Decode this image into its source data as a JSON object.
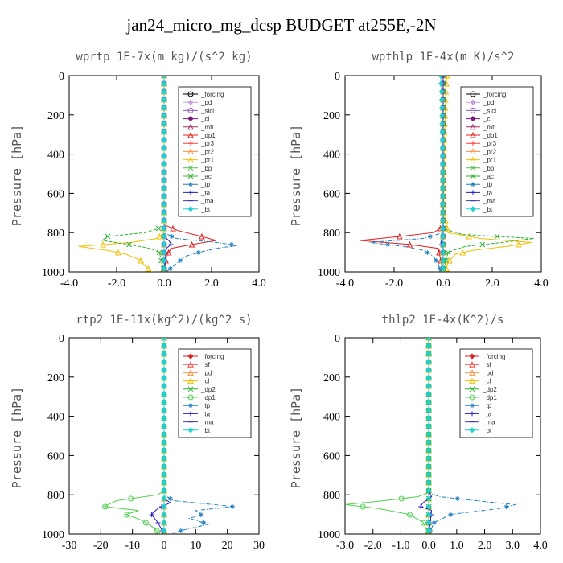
{
  "figure_title": "jan24_micro_mg_dcsp  BUDGET at255E,-2N",
  "chart_data": [
    {
      "type": "line",
      "title": "wprtp  1E-7x(m kg)/(s^2 kg)",
      "ylabel": "Pressure [hPa]",
      "xlim": [
        -4,
        4
      ],
      "ylim": [
        1000,
        0
      ],
      "xticks": [
        -4,
        -2,
        0,
        2,
        4
      ],
      "xtick_labels": [
        "-4.0",
        "-2.0",
        "0.0",
        "2.0",
        "4.0"
      ],
      "yticks": [
        0,
        200,
        400,
        600,
        800,
        1000
      ],
      "ytick_labels": [
        "0",
        "200",
        "400",
        "600",
        "800",
        "1000"
      ],
      "legend_position": "top-right",
      "series": [
        {
          "name": "_forcing",
          "color": "#000000",
          "marker": "circle",
          "y": [
            0,
            200,
            400,
            600,
            800,
            900,
            1000
          ],
          "x": [
            0,
            0,
            0,
            0,
            0,
            0,
            0
          ]
        },
        {
          "name": "_pd",
          "color": "#c8a0e0",
          "marker": "diamond",
          "y": [
            0,
            500,
            1000
          ],
          "x": [
            0,
            0,
            0
          ]
        },
        {
          "name": "_sicl",
          "color": "#9060c0",
          "marker": "circle",
          "y": [
            0,
            500,
            1000
          ],
          "x": [
            0,
            0,
            0
          ]
        },
        {
          "name": "_cl",
          "color": "#7a1a7a",
          "marker": "diamond",
          "y": [
            0,
            500,
            1000
          ],
          "x": [
            0,
            0,
            0
          ]
        },
        {
          "name": "_mfl",
          "color": "#a03060",
          "marker": "triangle",
          "y": [
            0,
            500,
            1000
          ],
          "x": [
            0,
            0,
            0
          ]
        },
        {
          "name": "_dp1",
          "color": "#e02020",
          "marker": "triangle",
          "y": [
            0,
            760,
            790,
            820,
            840,
            860,
            880,
            920,
            1000
          ],
          "x": [
            0,
            0,
            0.6,
            1.6,
            2.2,
            1.2,
            0.3,
            0.1,
            0
          ]
        },
        {
          "name": "_pr3",
          "color": "#ff4040",
          "marker": "plus",
          "y": [
            0,
            500,
            1000
          ],
          "x": [
            0,
            0,
            0
          ]
        },
        {
          "name": "_pr2",
          "color": "#ff9040",
          "marker": "triangle",
          "y": [
            0,
            500,
            1000
          ],
          "x": [
            0,
            0,
            0
          ]
        },
        {
          "name": "_pr1",
          "color": "#f0c000",
          "marker": "triangle",
          "y": [
            0,
            800,
            830,
            850,
            870,
            890,
            910,
            940,
            970,
            1000
          ],
          "x": [
            0,
            0,
            -0.3,
            -1.4,
            -3.6,
            -2.4,
            -1.6,
            -1.0,
            -0.8,
            -0.5
          ]
        },
        {
          "name": "_bp",
          "color": "#50c050",
          "marker": "cross",
          "y": [
            0,
            500,
            1000
          ],
          "x": [
            0,
            0,
            0
          ]
        },
        {
          "name": "_ac",
          "color": "#30b030",
          "marker": "cross",
          "y": [
            0,
            770,
            800,
            820,
            840,
            860,
            880,
            900,
            1000
          ],
          "x": [
            0,
            0,
            -0.8,
            -2.4,
            -2.6,
            -1.5,
            -0.6,
            -0.2,
            0
          ]
        },
        {
          "name": "_tp",
          "color": "#2080c0",
          "marker": "star",
          "y": [
            0,
            800,
            830,
            850,
            865,
            880,
            900,
            920,
            950,
            980,
            1000
          ],
          "x": [
            0,
            0,
            0.5,
            2.2,
            3.1,
            2.2,
            1.5,
            0.9,
            0.6,
            0.3,
            0.1
          ]
        },
        {
          "name": "_ta",
          "color": "#2020c0",
          "marker": "plus",
          "y": [
            0,
            820,
            840,
            860,
            880,
            1000
          ],
          "x": [
            0,
            0,
            0.2,
            0.3,
            0.1,
            0
          ]
        },
        {
          "name": "_ma",
          "color": "#4040a0",
          "marker": "dash",
          "y": [
            0,
            500,
            1000
          ],
          "x": [
            0,
            0,
            0
          ]
        },
        {
          "name": "_bt",
          "color": "#20d0d0",
          "marker": "diamond",
          "y": [
            0,
            500,
            1000
          ],
          "x": [
            0,
            0,
            0
          ]
        }
      ]
    },
    {
      "type": "line",
      "title": "wpthlp  1E-4x(m K)/s^2",
      "ylabel": "Pressure [hPa]",
      "xlim": [
        -4,
        4
      ],
      "ylim": [
        1000,
        0
      ],
      "xticks": [
        -4,
        -2,
        0,
        2,
        4
      ],
      "xtick_labels": [
        "-4.0",
        "-2.0",
        "0.0",
        "2.0",
        "4.0"
      ],
      "yticks": [
        0,
        200,
        400,
        600,
        800,
        1000
      ],
      "ytick_labels": [
        "0",
        "200",
        "400",
        "600",
        "800",
        "1000"
      ],
      "legend_position": "top-right",
      "series": [
        {
          "name": "_forcing",
          "color": "#000000",
          "marker": "circle",
          "y": [
            0,
            500,
            1000
          ],
          "x": [
            0,
            0,
            0
          ]
        },
        {
          "name": "_pd",
          "color": "#c8a0e0",
          "marker": "diamond",
          "y": [
            0,
            500,
            1000
          ],
          "x": [
            0,
            0,
            0
          ]
        },
        {
          "name": "_sicl",
          "color": "#9060c0",
          "marker": "circle",
          "y": [
            0,
            500,
            1000
          ],
          "x": [
            0,
            0,
            0
          ]
        },
        {
          "name": "_cl",
          "color": "#7a1a7a",
          "marker": "diamond",
          "y": [
            0,
            500,
            1000
          ],
          "x": [
            0,
            0,
            0
          ]
        },
        {
          "name": "_mfl",
          "color": "#a03060",
          "marker": "triangle",
          "y": [
            0,
            500,
            1000
          ],
          "x": [
            0,
            0,
            0
          ]
        },
        {
          "name": "_dp1",
          "color": "#e02020",
          "marker": "triangle",
          "y": [
            0,
            770,
            800,
            820,
            840,
            860,
            880,
            1000
          ],
          "x": [
            0,
            0,
            -0.4,
            -1.8,
            -3.4,
            -1.4,
            -0.2,
            0
          ]
        },
        {
          "name": "_pr3",
          "color": "#ff4040",
          "marker": "plus",
          "y": [
            0,
            500,
            1000
          ],
          "x": [
            0,
            0,
            0
          ]
        },
        {
          "name": "_pr2",
          "color": "#ff9040",
          "marker": "triangle",
          "y": [
            0,
            500,
            1000
          ],
          "x": [
            0,
            0,
            0
          ]
        },
        {
          "name": "_pr1",
          "color": "#f0c000",
          "marker": "triangle",
          "y": [
            0,
            100,
            200,
            300,
            400,
            500,
            600,
            700,
            800,
            830,
            850,
            870,
            890,
            910,
            950,
            1000
          ],
          "x": [
            0.15,
            0.1,
            0.08,
            0.06,
            0.05,
            0.04,
            0.03,
            0.03,
            0.2,
            1.5,
            3.6,
            2.6,
            1.2,
            0.5,
            0.2,
            0.1
          ]
        },
        {
          "name": "_bp",
          "color": "#50c050",
          "marker": "cross",
          "y": [
            0,
            500,
            1000
          ],
          "x": [
            0,
            0,
            0
          ]
        },
        {
          "name": "_ac",
          "color": "#30b030",
          "marker": "cross",
          "y": [
            0,
            780,
            810,
            830,
            850,
            870,
            900,
            1000
          ],
          "x": [
            0,
            0,
            0.8,
            3.7,
            2.4,
            0.9,
            0.2,
            0
          ]
        },
        {
          "name": "_tp",
          "color": "#2080c0",
          "marker": "star",
          "y": [
            0,
            800,
            830,
            850,
            870,
            890,
            920,
            960,
            1000
          ],
          "x": [
            0,
            0,
            -0.8,
            -3.0,
            -1.6,
            -0.8,
            -0.4,
            -0.2,
            -0.1
          ]
        },
        {
          "name": "_ta",
          "color": "#2020c0",
          "marker": "plus",
          "y": [
            0,
            820,
            850,
            880,
            1000
          ],
          "x": [
            0,
            0,
            -0.1,
            0,
            0
          ]
        },
        {
          "name": "_ma",
          "color": "#4040a0",
          "marker": "dash",
          "y": [
            0,
            500,
            1000
          ],
          "x": [
            0,
            0,
            0
          ]
        },
        {
          "name": "_bt",
          "color": "#20d0d0",
          "marker": "diamond",
          "y": [
            0,
            100,
            300,
            500,
            700,
            1000
          ],
          "x": [
            -0.1,
            -0.05,
            -0.03,
            -0.02,
            -0.02,
            0
          ]
        }
      ]
    },
    {
      "type": "line",
      "title": "rtp2  1E-11x(kg^2)/(kg^2 s)",
      "ylabel": "Pressure [hPa]",
      "xlim": [
        -30,
        30
      ],
      "ylim": [
        1000,
        0
      ],
      "xticks": [
        -30,
        -20,
        -10,
        0,
        10,
        20,
        30
      ],
      "xtick_labels": [
        "-30",
        "-20",
        "-10",
        "0",
        "10",
        "20",
        "30"
      ],
      "yticks": [
        0,
        200,
        400,
        600,
        800,
        1000
      ],
      "ytick_labels": [
        "0",
        "200",
        "400",
        "600",
        "800",
        "1000"
      ],
      "legend_position": "top-right",
      "series": [
        {
          "name": "_forcing",
          "color": "#e02020",
          "marker": "diamond",
          "y": [
            0,
            200,
            400,
            600,
            800,
            1000
          ],
          "x": [
            0,
            0,
            0,
            0,
            0,
            0
          ]
        },
        {
          "name": "_sf",
          "color": "#ff4040",
          "marker": "triangle",
          "y": [
            0,
            500,
            1000
          ],
          "x": [
            0,
            0,
            0
          ]
        },
        {
          "name": "_pd",
          "color": "#ff9040",
          "marker": "triangle",
          "y": [
            0,
            500,
            1000
          ],
          "x": [
            0,
            0,
            0
          ]
        },
        {
          "name": "_cl",
          "color": "#f0c000",
          "marker": "triangle",
          "y": [
            0,
            500,
            1000
          ],
          "x": [
            0,
            0,
            0
          ]
        },
        {
          "name": "_dp2",
          "color": "#30b030",
          "marker": "cross",
          "y": [
            0,
            500,
            1000
          ],
          "x": [
            0,
            0,
            0
          ]
        },
        {
          "name": "_dp1",
          "color": "#50d050",
          "marker": "circle",
          "y": [
            0,
            780,
            800,
            830,
            860,
            880,
            900,
            930,
            960,
            1000
          ],
          "x": [
            0,
            0,
            -2,
            -15,
            -19,
            -8,
            -12,
            -7,
            -4,
            -1
          ]
        },
        {
          "name": "_tp",
          "color": "#2080c0",
          "marker": "star",
          "y": [
            0,
            800,
            830,
            860,
            880,
            900,
            920,
            950,
            980,
            1000
          ],
          "x": [
            0,
            0,
            3,
            22,
            10,
            12,
            8,
            14,
            6,
            2
          ]
        },
        {
          "name": "_ta",
          "color": "#2020c0",
          "marker": "plus",
          "y": [
            0,
            820,
            840,
            870,
            900,
            940,
            1000
          ],
          "x": [
            0,
            0,
            2,
            -2,
            -4,
            -2,
            0
          ]
        },
        {
          "name": "_ma",
          "color": "#4040a0",
          "marker": "dash",
          "y": [
            0,
            500,
            1000
          ],
          "x": [
            0,
            0,
            0
          ]
        },
        {
          "name": "_bt",
          "color": "#20d0d0",
          "marker": "diamond",
          "y": [
            0,
            500,
            1000
          ],
          "x": [
            0,
            0,
            0
          ]
        }
      ]
    },
    {
      "type": "line",
      "title": "thlp2  1E-4x(K^2)/s",
      "ylabel": "Pressure [hPa]",
      "xlim": [
        -3,
        4
      ],
      "ylim": [
        1000,
        0
      ],
      "xticks": [
        -3,
        -2,
        -1,
        0,
        1,
        2,
        3,
        4
      ],
      "xtick_labels": [
        "-3.0",
        "-2.0",
        "-1.0",
        "0.0",
        "1.0",
        "2.0",
        "3.0",
        "4.0"
      ],
      "yticks": [
        0,
        200,
        400,
        600,
        800,
        1000
      ],
      "ytick_labels": [
        "0",
        "200",
        "400",
        "600",
        "800",
        "1000"
      ],
      "legend_position": "top-right",
      "series": [
        {
          "name": "_forcing",
          "color": "#e02020",
          "marker": "diamond",
          "y": [
            0,
            200,
            400,
            600,
            800,
            1000
          ],
          "x": [
            0,
            0,
            0,
            0,
            0,
            0
          ]
        },
        {
          "name": "_sf",
          "color": "#ff4040",
          "marker": "triangle",
          "y": [
            0,
            500,
            1000
          ],
          "x": [
            0,
            0,
            0
          ]
        },
        {
          "name": "_pd",
          "color": "#ff9040",
          "marker": "triangle",
          "y": [
            0,
            500,
            1000
          ],
          "x": [
            0,
            0,
            0
          ]
        },
        {
          "name": "_cl",
          "color": "#f0c000",
          "marker": "triangle",
          "y": [
            0,
            500,
            1000
          ],
          "x": [
            0,
            0,
            0
          ]
        },
        {
          "name": "_dp2",
          "color": "#30b030",
          "marker": "cross",
          "y": [
            0,
            500,
            1000
          ],
          "x": [
            0,
            0,
            0
          ]
        },
        {
          "name": "_dp1",
          "color": "#50d050",
          "marker": "circle",
          "y": [
            0,
            790,
            810,
            830,
            850,
            870,
            900,
            940,
            1000
          ],
          "x": [
            0,
            0,
            -0.4,
            -1.6,
            -3.0,
            -1.8,
            -0.7,
            -0.2,
            0
          ]
        },
        {
          "name": "_tp",
          "color": "#2080c0",
          "marker": "star",
          "y": [
            0,
            790,
            810,
            830,
            850,
            870,
            900,
            940,
            1000
          ],
          "x": [
            0,
            0,
            0.4,
            1.7,
            3.1,
            2.5,
            0.8,
            0.2,
            0
          ]
        },
        {
          "name": "_ta",
          "color": "#2020c0",
          "marker": "plus",
          "y": [
            0,
            780,
            810,
            840,
            860,
            880,
            1000
          ],
          "x": [
            0,
            0,
            0.1,
            -0.2,
            -0.3,
            0.1,
            0
          ]
        },
        {
          "name": "_ma",
          "color": "#4040a0",
          "marker": "dash",
          "y": [
            0,
            500,
            1000
          ],
          "x": [
            0,
            0,
            0
          ]
        },
        {
          "name": "_bt",
          "color": "#20d0d0",
          "marker": "diamond",
          "y": [
            0,
            500,
            1000
          ],
          "x": [
            0,
            0,
            0
          ]
        }
      ]
    }
  ]
}
